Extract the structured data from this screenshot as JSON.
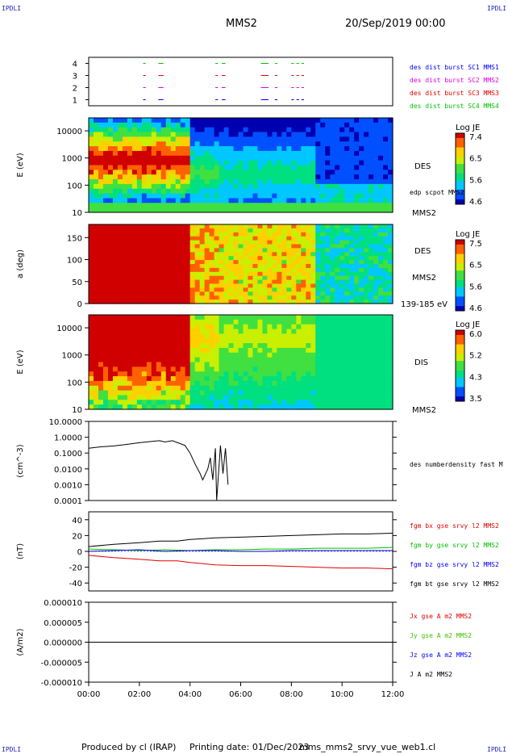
{
  "header": {
    "corner_label": "IPDLI",
    "spacecraft": "MMS2",
    "datetime": "20/Sep/2019 00:00"
  },
  "footer": {
    "produced_by": "Produced by cl (IRAP)",
    "printing_date": "Printing date: 01/Dec/2023",
    "filename": "mms_mms2_srvy_vue_web1.cl"
  },
  "colors": {
    "spectrogram": [
      "#0000b0",
      "#0050ff",
      "#00c8ff",
      "#00e080",
      "#40e040",
      "#c8f000",
      "#ffd000",
      "#ff6000",
      "#d00000"
    ],
    "burst_sc1": "#0000ff",
    "burst_sc2": "#e000e0",
    "burst_sc3": "#e00000",
    "burst_sc4": "#00c000"
  },
  "chart_data": [
    {
      "type": "timeline",
      "panel": "burst",
      "yticks": [
        "1",
        "2",
        "3",
        "4"
      ],
      "ylim": [
        0.5,
        4.5
      ],
      "legend": [
        {
          "label": "des dist burst SC1 MMS1",
          "color": "#0000ff"
        },
        {
          "label": "des dist burst SC2 MMS2",
          "color": "#e000e0"
        },
        {
          "label": "des dist burst SC3 MMS3",
          "color": "#e00000"
        },
        {
          "label": "des dist burst SC4 MMS4",
          "color": "#00c000"
        }
      ],
      "intervals_hours": [
        [
          2.15,
          2.25
        ],
        [
          2.75,
          2.95
        ],
        [
          5.0,
          5.1
        ],
        [
          5.25,
          5.4
        ],
        [
          6.8,
          7.1
        ],
        [
          7.35,
          7.45
        ],
        [
          8.0,
          8.1
        ],
        [
          8.2,
          8.3
        ],
        [
          8.4,
          8.5
        ]
      ]
    },
    {
      "type": "heatmap",
      "panel": "des_energy",
      "ylabel": "E (eV)",
      "yscale": "log",
      "yticks": [
        "10",
        "100",
        "1000",
        "10000"
      ],
      "ylim": [
        10,
        30000
      ],
      "species_label": "DES",
      "overlay_label": "edp scpot MMS2",
      "bottom_label": "MMS2",
      "colorbar": {
        "title": "Log JE",
        "ticks": [
          "7.4",
          "6.5",
          "5.6",
          "4.6"
        ],
        "range": [
          4.6,
          7.4
        ]
      }
    },
    {
      "type": "heatmap",
      "panel": "des_pitch",
      "ylabel": "a (deg)",
      "yticks": [
        "0",
        "50",
        "100",
        "150"
      ],
      "ylim": [
        0,
        180
      ],
      "species_label": "DES",
      "spacecraft_label": "MMS2",
      "energy_label": "139-185 eV",
      "colorbar": {
        "title": "Log JE",
        "ticks": [
          "7.5",
          "6.5",
          "5.6",
          "4.6"
        ],
        "range": [
          4.6,
          7.5
        ]
      }
    },
    {
      "type": "heatmap",
      "panel": "dis_energy",
      "ylabel": "E (eV)",
      "yscale": "log",
      "yticks": [
        "10",
        "100",
        "1000",
        "10000"
      ],
      "ylim": [
        10,
        30000
      ],
      "species_label": "DIS",
      "bottom_label": "MMS2",
      "colorbar": {
        "title": "Log JE",
        "ticks": [
          "6.0",
          "5.2",
          "4.3",
          "3.5"
        ],
        "range": [
          3.5,
          6.0
        ]
      }
    },
    {
      "type": "line",
      "panel": "density",
      "ylabel": "(cm^-3)",
      "yscale": "log",
      "yticks": [
        "10.0000",
        "1.0000",
        "0.1000",
        "0.0100",
        "0.0010",
        "0.0001"
      ],
      "ylim": [
        0.0001,
        10
      ],
      "series": [
        {
          "name": "des numberdensity fast M",
          "color": "#000000",
          "x": [
            0.0,
            0.5,
            1.0,
            1.5,
            2.0,
            2.5,
            2.8,
            3.0,
            3.3,
            3.6,
            3.8,
            4.0,
            4.2,
            4.4,
            4.5,
            4.7,
            4.8,
            4.9,
            5.0,
            5.05,
            5.2,
            5.3,
            5.4,
            5.5
          ],
          "y": [
            0.2,
            0.25,
            0.28,
            0.35,
            0.45,
            0.55,
            0.6,
            0.5,
            0.6,
            0.4,
            0.3,
            0.1,
            0.02,
            0.005,
            0.002,
            0.01,
            0.05,
            0.002,
            0.2,
            0.0001,
            0.3,
            0.005,
            0.2,
            0.001
          ]
        }
      ]
    },
    {
      "type": "line",
      "panel": "magnetic_field",
      "ylabel": "(nT)",
      "yticks": [
        "40",
        "20",
        "0",
        "-20",
        "-40"
      ],
      "ylim": [
        -50,
        50
      ],
      "series": [
        {
          "name": "fgm bx gse srvy l2 MMS2",
          "color": "#e00000",
          "x": [
            0,
            1,
            2,
            2.8,
            3.5,
            4,
            5,
            6,
            7,
            8,
            9,
            10,
            11,
            12
          ],
          "y": [
            -5,
            -8,
            -10,
            -12,
            -12,
            -14,
            -17,
            -18,
            -18,
            -19,
            -20,
            -21,
            -21,
            -22
          ]
        },
        {
          "name": "fgm by gse srvy l2 MMS2",
          "color": "#00c000",
          "x": [
            0,
            1,
            2,
            3,
            4,
            5,
            6,
            7,
            8,
            9,
            10,
            11,
            12
          ],
          "y": [
            3,
            2,
            1,
            2,
            1,
            2,
            2,
            3,
            3,
            4,
            4,
            4,
            5
          ]
        },
        {
          "name": "fgm bz gse srvy l2 MMS2",
          "color": "#0000ff",
          "x": [
            0,
            1,
            2,
            3,
            4,
            5,
            6,
            7,
            8,
            9,
            10,
            11,
            12
          ],
          "y": [
            0,
            1,
            2,
            0,
            1,
            1,
            0,
            0,
            1,
            1,
            1,
            1,
            1
          ]
        },
        {
          "name": "fgm bt gse srvy l2 MMS2",
          "color": "#000000",
          "x": [
            0,
            1,
            2,
            2.8,
            3.5,
            4,
            5,
            6,
            7,
            8,
            9,
            10,
            11,
            12
          ],
          "y": [
            6,
            9,
            11,
            13,
            13,
            15,
            17,
            18,
            19,
            20,
            21,
            22,
            22,
            23
          ]
        }
      ]
    },
    {
      "type": "line",
      "panel": "current_density",
      "ylabel": "(A/m2)",
      "yticks": [
        "0.000010",
        "0.000005",
        "0.000000",
        "-0.000005",
        "-0.000010"
      ],
      "ylim": [
        -1e-05,
        1e-05
      ],
      "series": [
        {
          "name": "Jx gse A m2 MMS2",
          "color": "#e00000"
        },
        {
          "name": "Jy gse A m2 MMS2",
          "color": "#40c000"
        },
        {
          "name": "Jz gse A m2 MMS2",
          "color": "#0000ff"
        },
        {
          "name": "J A m2 MMS2",
          "color": "#000000",
          "x": [
            0,
            2,
            4,
            6,
            8,
            10,
            12
          ],
          "y": [
            0,
            0,
            0,
            0,
            0,
            0,
            0
          ]
        }
      ],
      "xticks": [
        "00:00",
        "02:00",
        "04:00",
        "06:00",
        "08:00",
        "10:00",
        "12:00"
      ],
      "xlim": [
        0,
        12
      ]
    }
  ]
}
